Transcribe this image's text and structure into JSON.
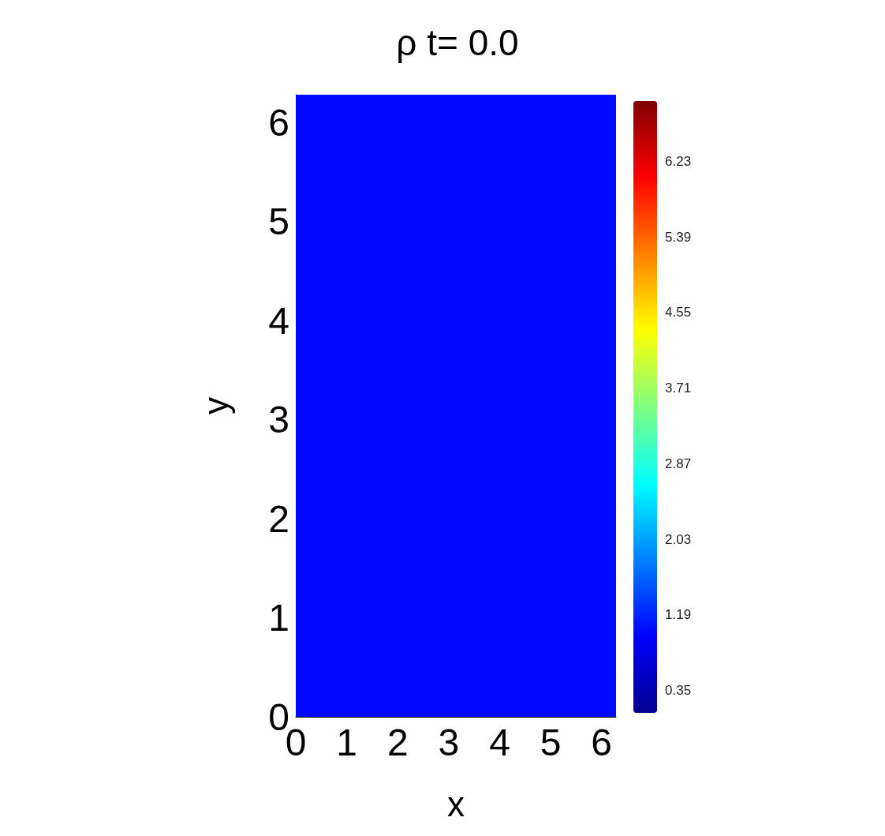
{
  "chart_data": {
    "type": "heatmap",
    "title": "ρ t= 0.0",
    "xlabel": "x",
    "ylabel": "y",
    "cells": [
      [
        1.0
      ]
    ],
    "xlim": [
      0,
      6.283
    ],
    "ylim": [
      0,
      6.283
    ],
    "xticks": [
      0,
      1,
      2,
      3,
      4,
      5,
      6
    ],
    "yticks": [
      0,
      1,
      2,
      3,
      4,
      5,
      6
    ],
    "clim": [
      0.1,
      6.9
    ],
    "cticks": [
      0.35,
      1.19,
      2.03,
      2.87,
      3.71,
      4.55,
      5.39,
      6.23
    ]
  }
}
